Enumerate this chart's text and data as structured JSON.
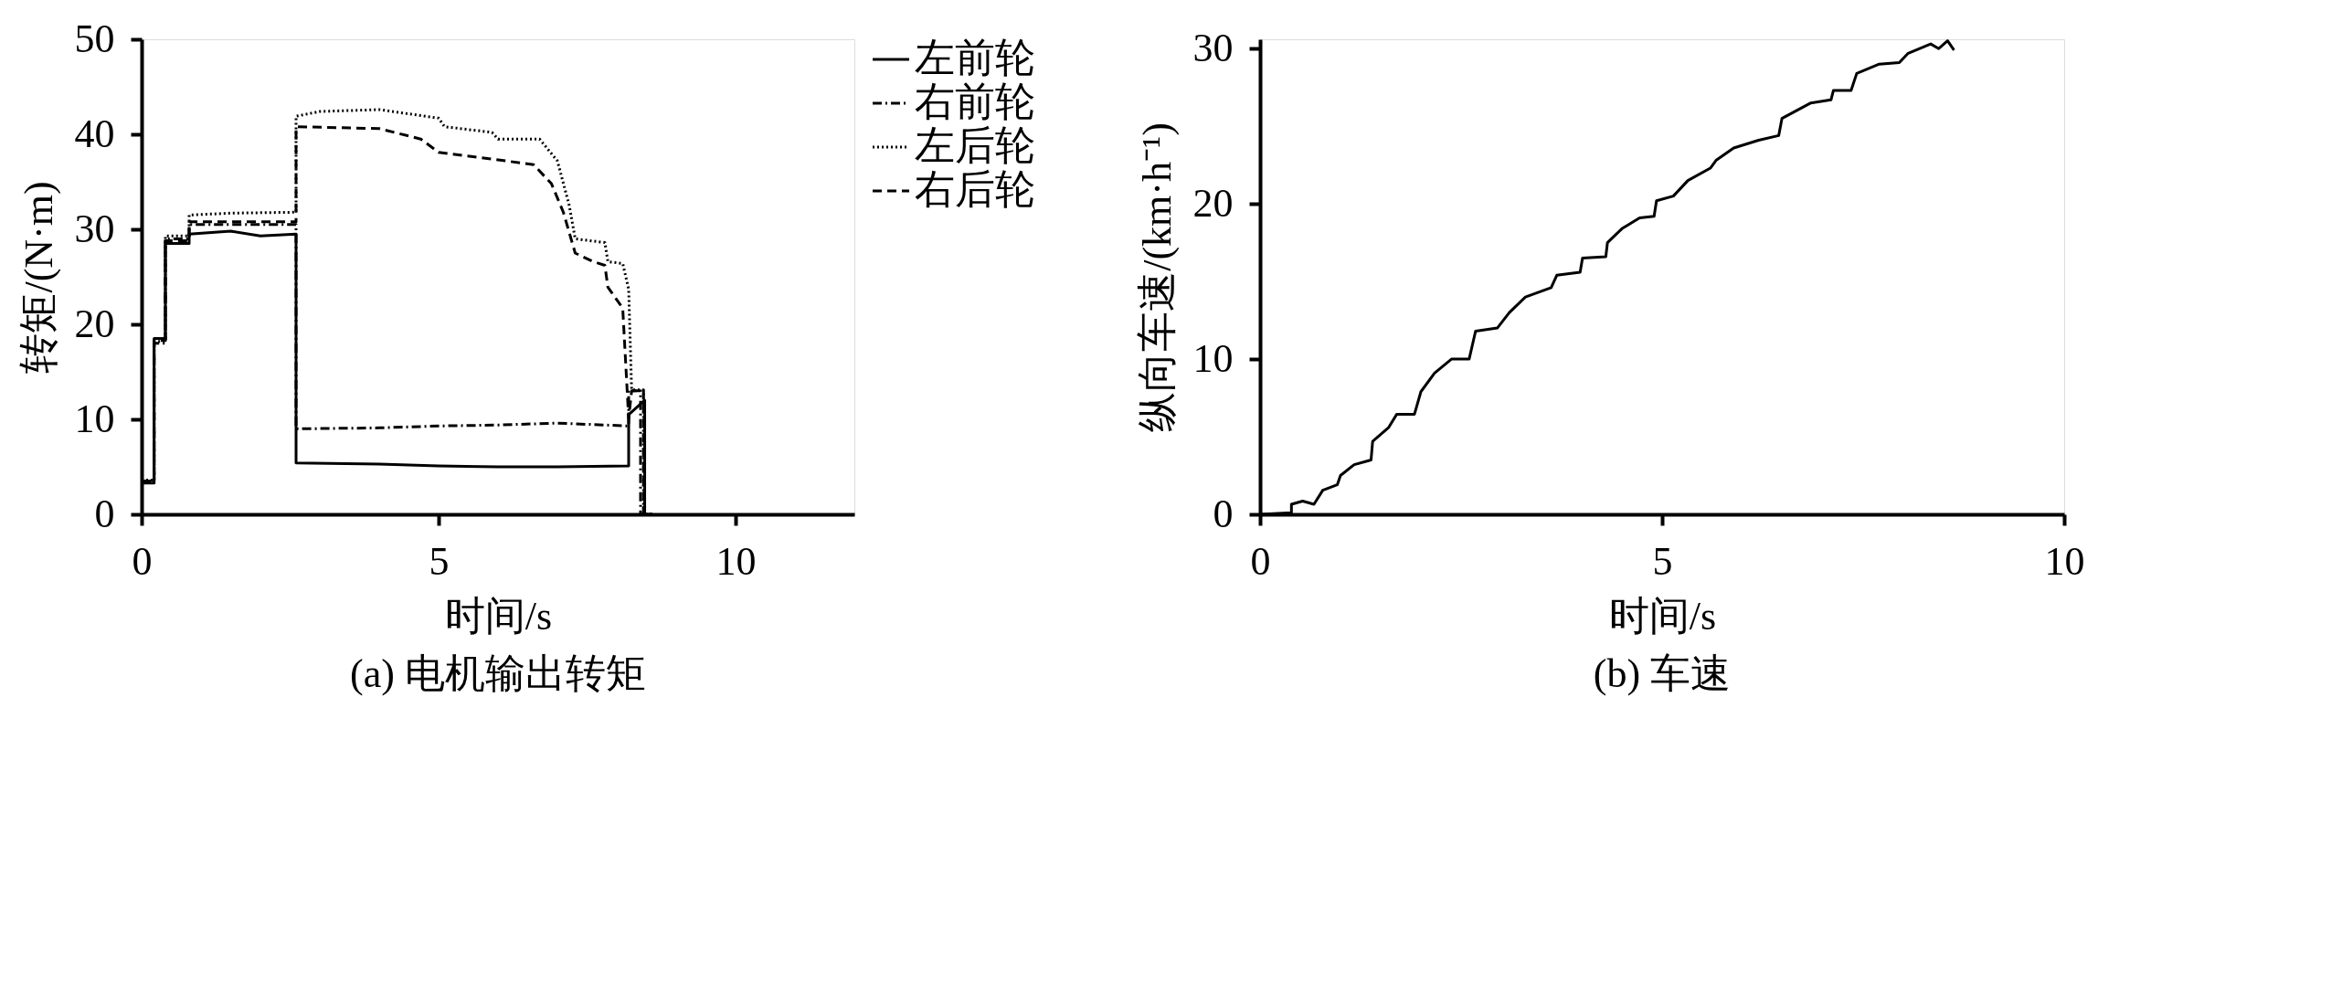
{
  "chart_data": [
    {
      "type": "line",
      "title": "(a) 电机输出转矩",
      "xlabel": "时间/s",
      "ylabel": "转矩/(N·m)",
      "xlim": [
        0,
        12
      ],
      "xticks": [
        0,
        5,
        10
      ],
      "ylim": [
        0,
        50
      ],
      "yticks": [
        0,
        10,
        20,
        30,
        40,
        50
      ],
      "grid": false,
      "legend": "right",
      "series": [
        {
          "name": "左前轮",
          "color": "#000000",
          "line_style": "solid",
          "x": [
            0,
            0.21,
            0.21,
            0.4,
            0.4,
            0.8,
            0.8,
            1.5,
            2.0,
            2.6,
            2.6,
            4.0,
            5.0,
            6.0,
            7.0,
            8.2,
            8.2,
            8.47,
            8.47,
            8.6
          ],
          "values": [
            3.3,
            3.3,
            18.5,
            18.5,
            28.5,
            28.5,
            29.5,
            29.8,
            29.3,
            29.5,
            5.4,
            5.3,
            5.1,
            5.0,
            5.0,
            5.1,
            10.5,
            12,
            0,
            0
          ]
        },
        {
          "name": "右前轮",
          "color": "#000000",
          "line_style": "dashdot",
          "x": [
            0,
            0.21,
            0.21,
            0.4,
            0.4,
            0.8,
            0.8,
            2.6,
            2.6,
            4,
            5,
            6,
            7,
            8.2,
            8.2,
            8.4,
            8.4,
            8.6
          ],
          "values": [
            3.5,
            3.5,
            18,
            18,
            29,
            29,
            30.5,
            30.5,
            9,
            9.1,
            9.3,
            9.4,
            9.6,
            9.3,
            13,
            13,
            0,
            0
          ]
        },
        {
          "name": "左后轮",
          "color": "#000000",
          "line_style": "dotted",
          "x": [
            0,
            0.21,
            0.21,
            0.4,
            0.4,
            0.8,
            0.8,
            1.5,
            2.6,
            2.6,
            3.0,
            4.0,
            5.0,
            5.1,
            5.9,
            6.0,
            6.7,
            7.0,
            7.2,
            7.3,
            7.8,
            7.85,
            8.1,
            8.2,
            8.25,
            8.45,
            8.45,
            8.6
          ],
          "values": [
            3.6,
            3.6,
            18.2,
            18.2,
            29.3,
            29.3,
            31.5,
            31.7,
            31.8,
            41.9,
            42.4,
            42.6,
            41.7,
            40.8,
            40.2,
            39.5,
            39.5,
            37.2,
            32.5,
            29,
            28.6,
            26.6,
            26.4,
            23.7,
            13.1,
            13.1,
            0,
            0
          ]
        },
        {
          "name": "右后轮",
          "color": "#000000",
          "line_style": "dashed",
          "x": [
            0,
            0.21,
            0.21,
            0.4,
            0.4,
            0.8,
            0.8,
            2.6,
            2.6,
            4.0,
            4.7,
            5.0,
            5.9,
            6.6,
            6.9,
            7.1,
            7.3,
            7.6,
            7.8,
            7.85,
            8.1,
            8.2,
            8.25,
            8.45,
            8.45,
            8.6
          ],
          "values": [
            3.4,
            3.4,
            18.3,
            18.3,
            28.8,
            28.8,
            30.8,
            30.8,
            40.8,
            40.6,
            39.5,
            38.1,
            37.4,
            36.8,
            34.8,
            31.8,
            27.5,
            26.6,
            26.2,
            23.9,
            21.7,
            10.1,
            13,
            13,
            0,
            0
          ]
        }
      ]
    },
    {
      "type": "line",
      "title": "(b) 车速",
      "xlabel": "时间/s",
      "ylabel": "纵向车速/(km·h⁻¹)",
      "xlim": [
        0,
        10
      ],
      "xticks": [
        0,
        5,
        10
      ],
      "ylim": [
        0,
        30.6
      ],
      "yticks": [
        0,
        10,
        20,
        30
      ],
      "grid": false,
      "legend": false,
      "series": [
        {
          "color": "#000000",
          "line_style": "solid",
          "x": [
            0,
            0.39,
            0.39,
            0.53,
            0.67,
            0.78,
            0.96,
            1,
            1.17,
            1.38,
            1.4,
            1.6,
            1.7,
            1.92,
            2,
            2.17,
            2.38,
            2.6,
            2.68,
            2.95,
            3.1,
            3.3,
            3.62,
            3.69,
            3.98,
            4.01,
            4.3,
            4.32,
            4.5,
            4.72,
            4.9,
            4.93,
            5.14,
            5.32,
            5.6,
            5.67,
            5.89,
            6.2,
            6.45,
            6.49,
            6.85,
            7.1,
            7.13,
            7.35,
            7.42,
            7.7,
            7.95,
            8.06,
            8.34,
            8.44,
            8.55,
            8.63
          ],
          "values": [
            0,
            0.1,
            0.65,
            0.85,
            0.65,
            1.55,
            1.9,
            2.5,
            3.2,
            3.5,
            4.7,
            5.6,
            6.45,
            6.45,
            7.9,
            9.1,
            10,
            10,
            11.8,
            12,
            13,
            14,
            14.6,
            15.4,
            15.6,
            16.5,
            16.6,
            17.5,
            18.4,
            19.1,
            19.2,
            20.2,
            20.5,
            21.5,
            22.3,
            22.8,
            23.6,
            24.1,
            24.4,
            25.5,
            26.5,
            26.7,
            27.3,
            27.3,
            28.4,
            29,
            29.1,
            29.7,
            30.3,
            30,
            30.5,
            29.9
          ]
        }
      ]
    }
  ]
}
